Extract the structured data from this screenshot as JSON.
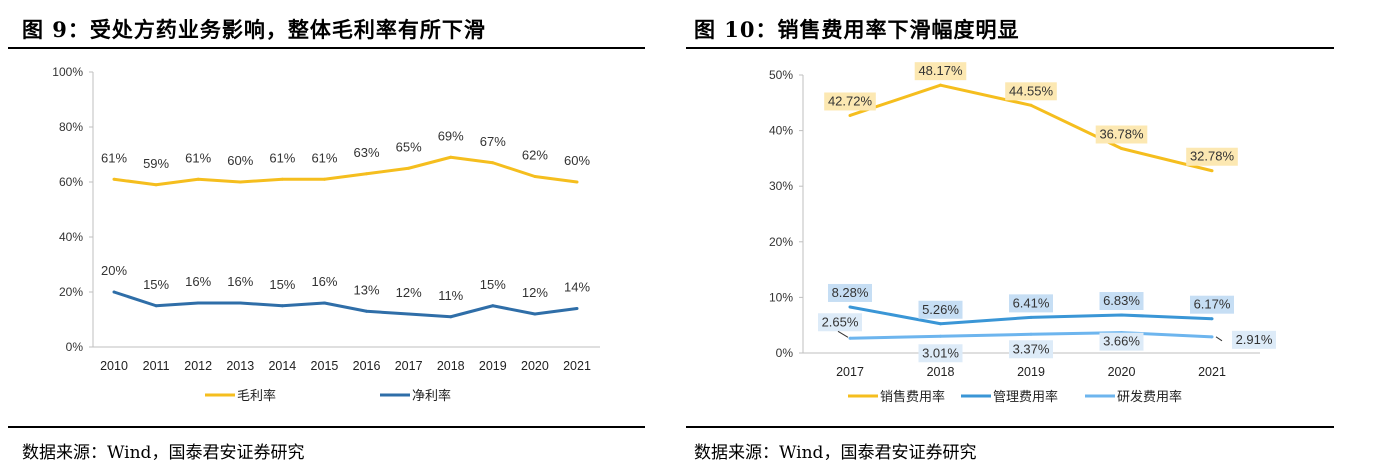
{
  "left": {
    "title": "图 9：受处方药业务影响，整体毛利率有所下滑",
    "source": "数据来源：Wind，国泰君安证券研究"
  },
  "right": {
    "title": "图 10：销售费用率下滑幅度明显",
    "source": "数据来源：Wind，国泰君安证券研究"
  },
  "chart_data": [
    {
      "type": "line",
      "title": "图 9：受处方药业务影响，整体毛利率有所下滑",
      "categories": [
        "2010",
        "2011",
        "2012",
        "2013",
        "2014",
        "2015",
        "2016",
        "2017",
        "2018",
        "2019",
        "2020",
        "2021"
      ],
      "ylim": [
        0,
        100
      ],
      "yticks": [
        "0%",
        "20%",
        "40%",
        "60%",
        "80%",
        "100%"
      ],
      "grid": false,
      "legend": "bottom",
      "series": [
        {
          "name": "毛利率",
          "color": "#F5BE1E",
          "values": [
            61,
            59,
            61,
            60,
            61,
            61,
            63,
            65,
            69,
            67,
            62,
            60
          ],
          "labels": [
            "61%",
            "59%",
            "61%",
            "60%",
            "61%",
            "61%",
            "63%",
            "65%",
            "69%",
            "67%",
            "62%",
            "60%"
          ]
        },
        {
          "name": "净利率",
          "color": "#2F6EA8",
          "values": [
            20,
            15,
            16,
            16,
            15,
            16,
            13,
            12,
            11,
            15,
            12,
            14
          ],
          "labels": [
            "20%",
            "15%",
            "16%",
            "16%",
            "15%",
            "16%",
            "13%",
            "12%",
            "11%",
            "15%",
            "12%",
            "14%"
          ]
        }
      ]
    },
    {
      "type": "line",
      "title": "图 10：销售费用率下滑幅度明显",
      "categories": [
        "2017",
        "2018",
        "2019",
        "2020",
        "2021"
      ],
      "ylim": [
        0,
        50
      ],
      "yticks": [
        "0%",
        "10%",
        "20%",
        "30%",
        "40%",
        "50%"
      ],
      "grid": false,
      "legend": "bottom",
      "series": [
        {
          "name": "销售费用率",
          "color": "#F5BE1E",
          "label_bg": "#FCE8B2",
          "values": [
            42.72,
            48.17,
            44.55,
            36.78,
            32.78
          ],
          "labels": [
            "42.72%",
            "48.17%",
            "44.55%",
            "36.78%",
            "32.78%"
          ]
        },
        {
          "name": "管理费用率",
          "color": "#3A96D6",
          "label_bg": "#C6DEF4",
          "values": [
            8.28,
            5.26,
            6.41,
            6.83,
            6.17
          ],
          "labels": [
            "8.28%",
            "5.26%",
            "6.41%",
            "6.83%",
            "6.17%"
          ]
        },
        {
          "name": "研发费用率",
          "color": "#6DB5EE",
          "label_bg": "#DDEBF8",
          "values": [
            2.65,
            3.01,
            3.37,
            3.66,
            2.91
          ],
          "labels": [
            "2.65%",
            "3.01%",
            "3.37%",
            "3.66%",
            "2.91%"
          ]
        }
      ]
    }
  ]
}
